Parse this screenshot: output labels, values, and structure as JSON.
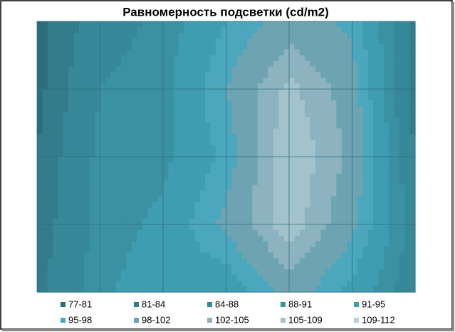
{
  "chart_data": {
    "type": "contour",
    "title": "Равномерность подсветки (cd/m2)",
    "levels": [
      77,
      81,
      84,
      88,
      91,
      95,
      98,
      102,
      105,
      109,
      112
    ],
    "series": [
      {
        "name": "77-81",
        "color": "#2c6d7b"
      },
      {
        "name": "81-84",
        "color": "#327c8b"
      },
      {
        "name": "84-88",
        "color": "#378898"
      },
      {
        "name": "88-91",
        "color": "#3b91a2"
      },
      {
        "name": "91-95",
        "color": "#3f9db1"
      },
      {
        "name": "95-98",
        "color": "#4aa7bd"
      },
      {
        "name": "98-102",
        "color": "#6ea3b2"
      },
      {
        "name": "102-105",
        "color": "#8cb3bf"
      },
      {
        "name": "105-109",
        "color": "#a2c3cc"
      },
      {
        "name": "109-112",
        "color": "#b4d2da"
      }
    ],
    "z": [
      [
        80,
        86,
        89,
        95,
        100,
        97,
        83
      ],
      [
        80,
        88,
        90,
        98,
        106,
        100,
        82
      ],
      [
        81,
        89,
        90,
        96,
        108,
        101,
        84
      ],
      [
        82,
        89,
        92,
        99,
        107,
        99,
        86
      ],
      [
        83,
        90,
        94,
        92,
        100,
        94,
        85
      ]
    ]
  }
}
